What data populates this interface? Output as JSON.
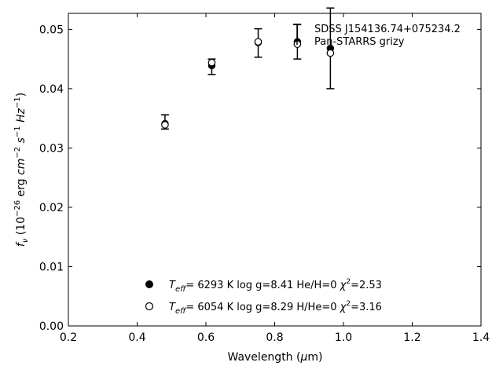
{
  "chart_data": {
    "type": "scatter",
    "xlabel_prefix": "Wavelength (",
    "xlabel_mu": "μ",
    "xlabel_suffix": "m)",
    "ylabel": "f_ν (10^-26 erg cm^-2 s^-1 Hz^-1)",
    "xlim": [
      0.2,
      1.4
    ],
    "ylim": [
      0.0,
      0.0527
    ],
    "xticks": [
      0.2,
      0.4,
      0.6,
      0.8,
      1.0,
      1.2,
      1.4
    ],
    "xtick_labels": [
      "0.2",
      "0.4",
      "0.6",
      "0.8",
      "1.0",
      "1.2",
      "1.4"
    ],
    "yticks": [
      0.0,
      0.01,
      0.02,
      0.03,
      0.04,
      0.05
    ],
    "ytick_labels": [
      "0.00",
      "0.01",
      "0.02",
      "0.03",
      "0.04",
      "0.05"
    ],
    "grid": false,
    "legend_position": "top-right",
    "series": [
      {
        "name": "SDSS J154136.74+075234.2 Pan-STARRS grizy",
        "marker": "errorbar",
        "x": [
          0.481,
          0.617,
          0.752,
          0.866,
          0.962
        ],
        "y": [
          0.0344,
          0.0437,
          0.0477,
          0.0479,
          0.0468
        ],
        "yerr": [
          0.0012,
          0.0013,
          0.0024,
          0.0029,
          0.0068
        ]
      },
      {
        "name": "",
        "marker": "filled-circle",
        "x": [
          0.481,
          0.617,
          0.752,
          0.866,
          0.962
        ],
        "y": [
          0.0341,
          0.0439,
          0.0478,
          0.0479,
          0.0468
        ]
      },
      {
        "name": "",
        "marker": "open-circle",
        "x": [
          0.481,
          0.617,
          0.752,
          0.866,
          0.962
        ],
        "y": [
          0.0339,
          0.0444,
          0.0479,
          0.0475,
          0.046
        ]
      }
    ],
    "legend_label_line1": "SDSS J154136.74+075234.2",
    "legend_label_line2": "Pan-STARRS grizy",
    "annotations": [
      {
        "marker": "filled-circle",
        "teff_value": "6293 K",
        "rest": "log g=8.41  He/H=0",
        "chi2_value": "2.53"
      },
      {
        "marker": "open-circle",
        "teff_value": "6054 K",
        "rest": "log g=8.29  H/He=0",
        "chi2_value": "3.16"
      }
    ]
  }
}
